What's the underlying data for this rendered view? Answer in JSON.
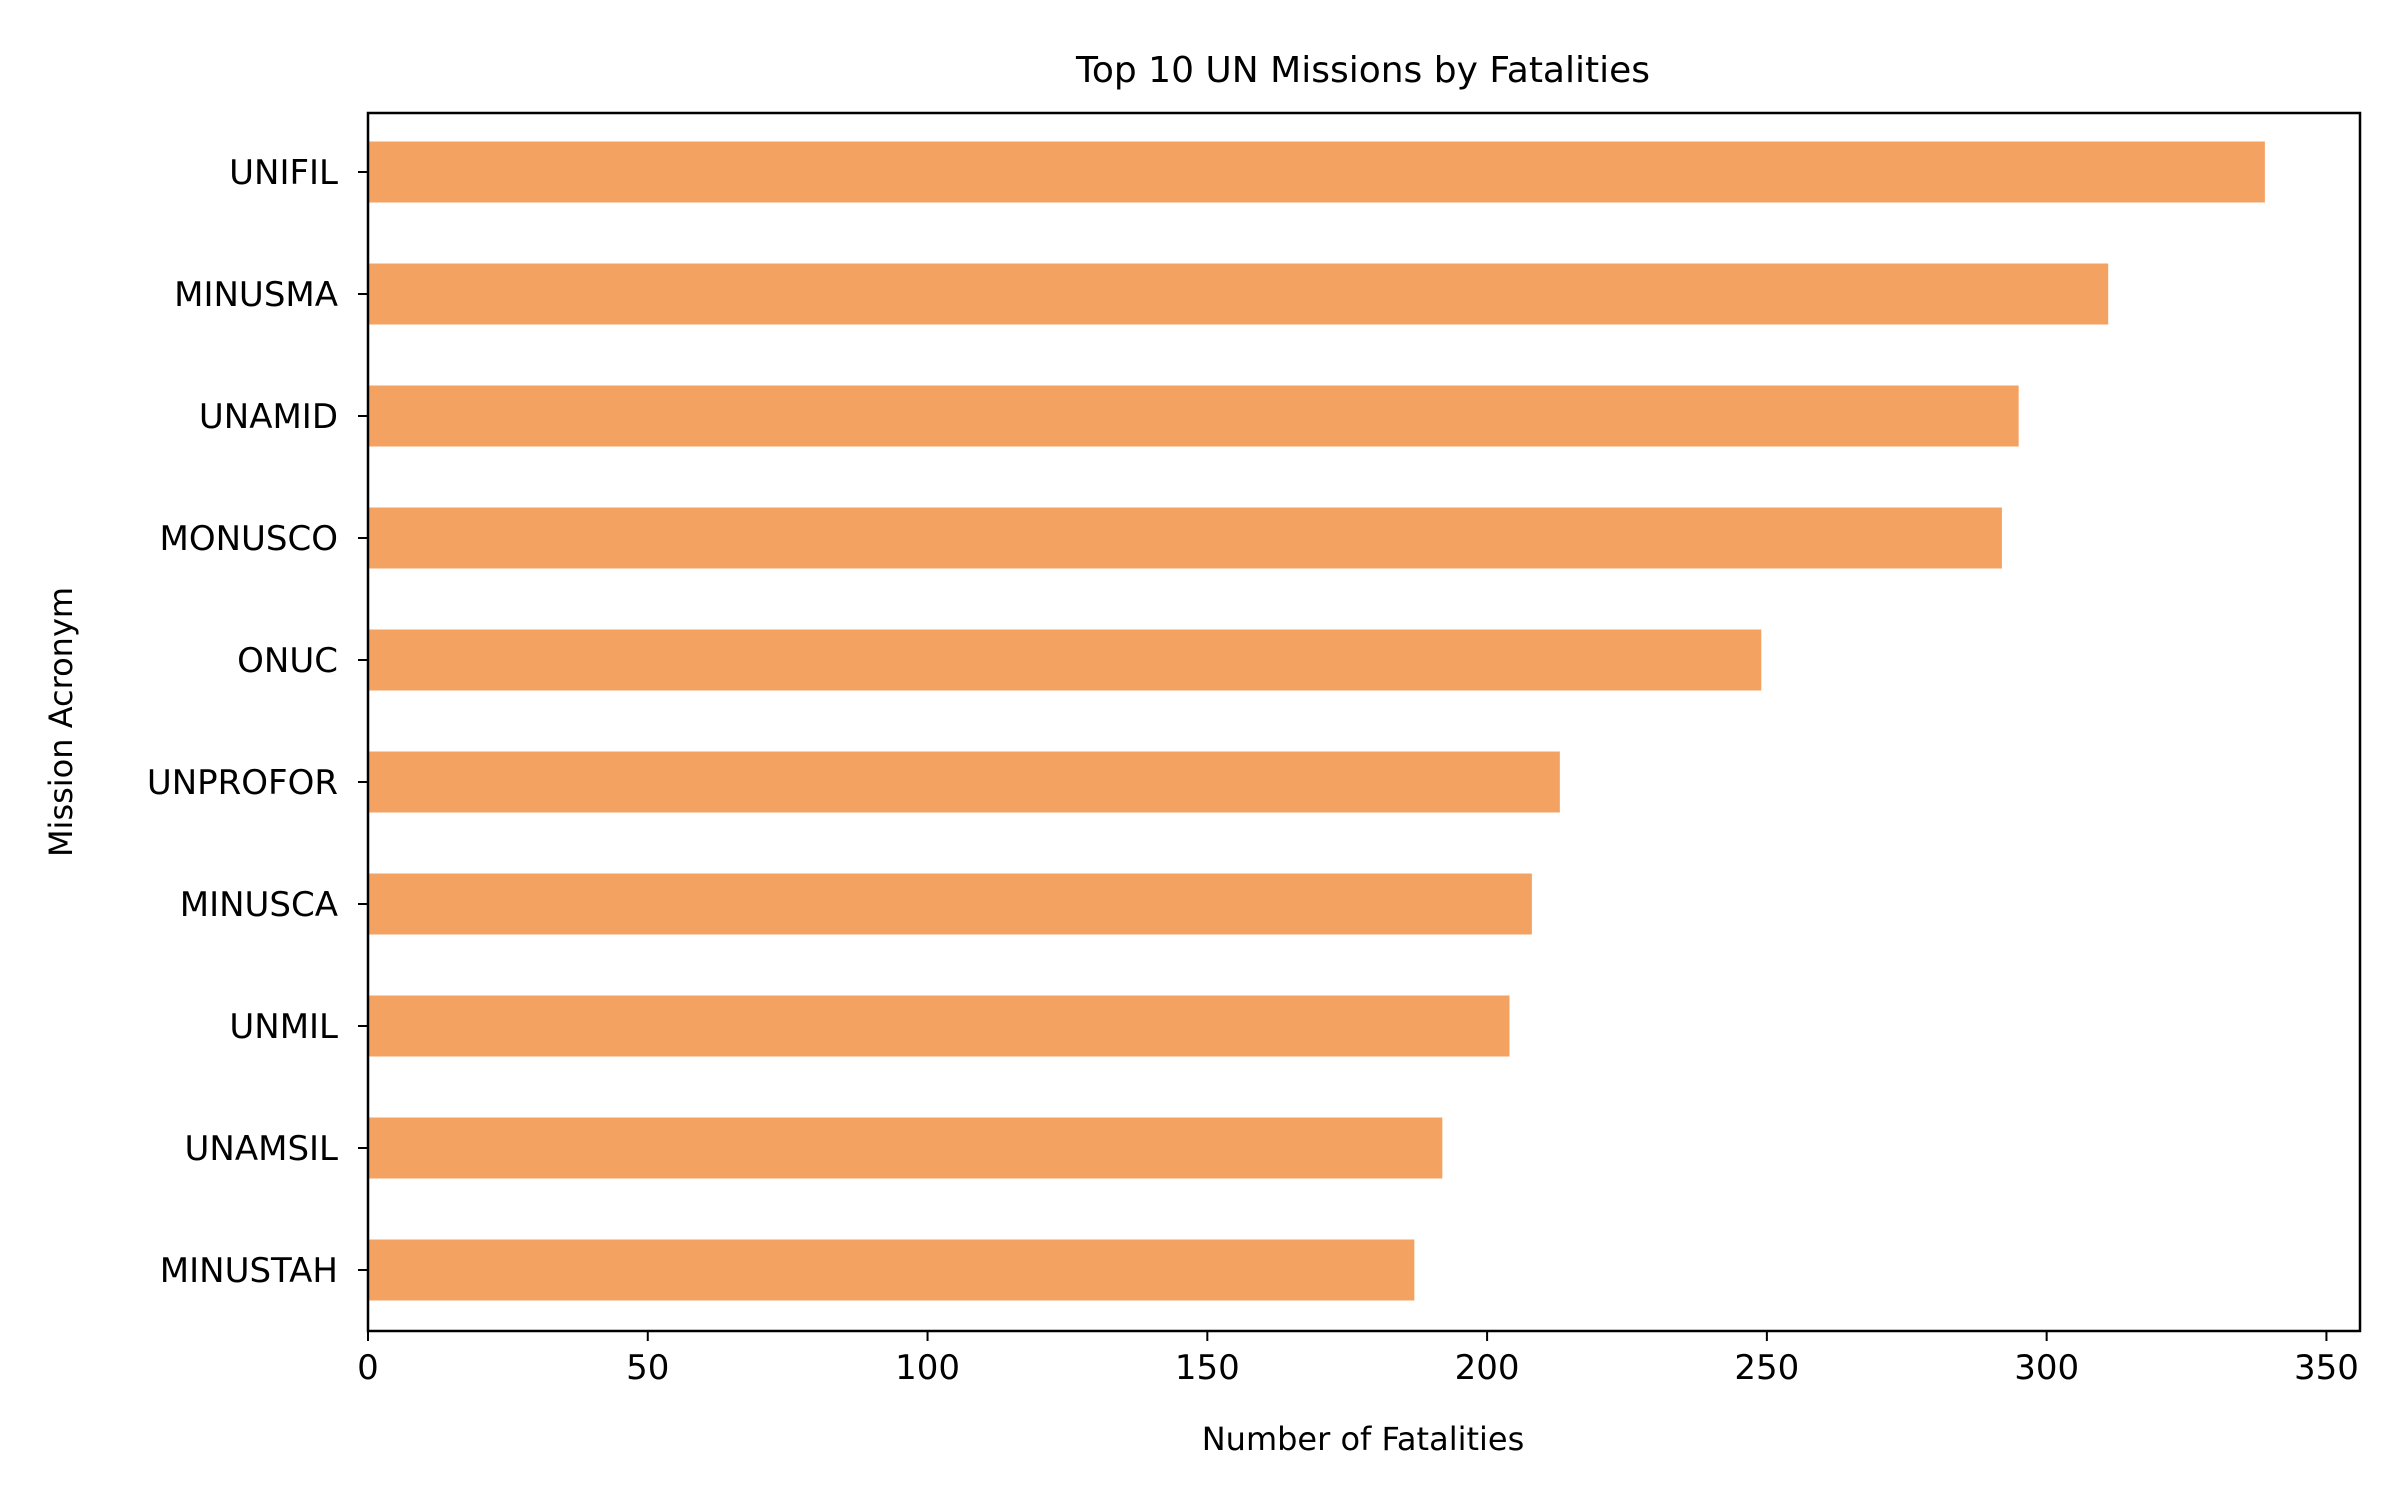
{
  "chart_data": {
    "type": "bar",
    "orientation": "horizontal",
    "title": "Top 10 UN Missions by Fatalities",
    "xlabel": "Number of Fatalities",
    "ylabel": "Mission Acronym",
    "categories": [
      "UNIFIL",
      "MINUSMA",
      "UNAMID",
      "MONUSCO",
      "ONUC",
      "UNPROFOR",
      "MINUSCA",
      "UNMIL",
      "UNAMSIL",
      "MINUSTAH"
    ],
    "values": [
      339,
      311,
      295,
      292,
      249,
      213,
      208,
      204,
      192,
      187
    ],
    "xlim": [
      0,
      356
    ],
    "xticks": [
      0,
      50,
      100,
      150,
      200,
      250,
      300,
      350
    ],
    "grid": false,
    "bar_color": "#f4a261"
  }
}
